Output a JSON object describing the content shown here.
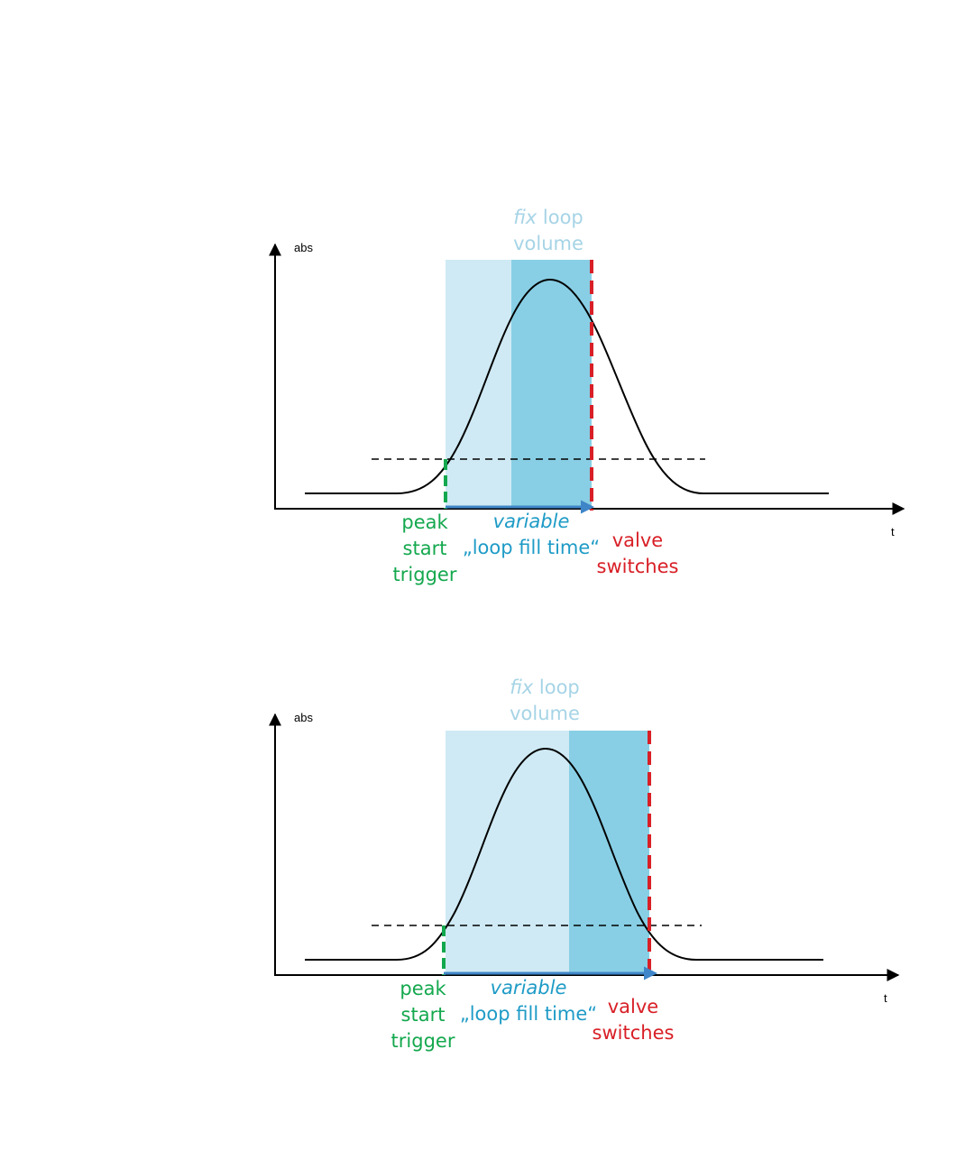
{
  "colors": {
    "window_light": "#cfeaf4",
    "window_dark": "#88cfe5",
    "fix_label": "#a6d4e6",
    "variable_label": "#1e9bc6",
    "trigger": "#14a84e",
    "valve": "#d81f26",
    "arrow": "#3f86c8",
    "curve": "#000000"
  },
  "panels": [
    {
      "y_axis_label": "abs",
      "x_axis_label": "t",
      "fix_label": {
        "italic": "fix",
        "rest": " loop",
        "line2": "volume"
      },
      "variable_label": {
        "line1": "variable",
        "line2": "„loop fill time“"
      },
      "trigger_label": [
        "peak",
        "start",
        "trigger"
      ],
      "valve_label": [
        "valve",
        "switches"
      ]
    },
    {
      "y_axis_label": "abs",
      "x_axis_label": "t",
      "fix_label": {
        "italic": "fix",
        "rest": " loop",
        "line2": "volume"
      },
      "variable_label": {
        "line1": "variable",
        "line2": "„loop fill time“"
      },
      "trigger_label": [
        "peak",
        "start",
        "trigger"
      ],
      "valve_label": [
        "valve",
        "switches"
      ]
    }
  ]
}
